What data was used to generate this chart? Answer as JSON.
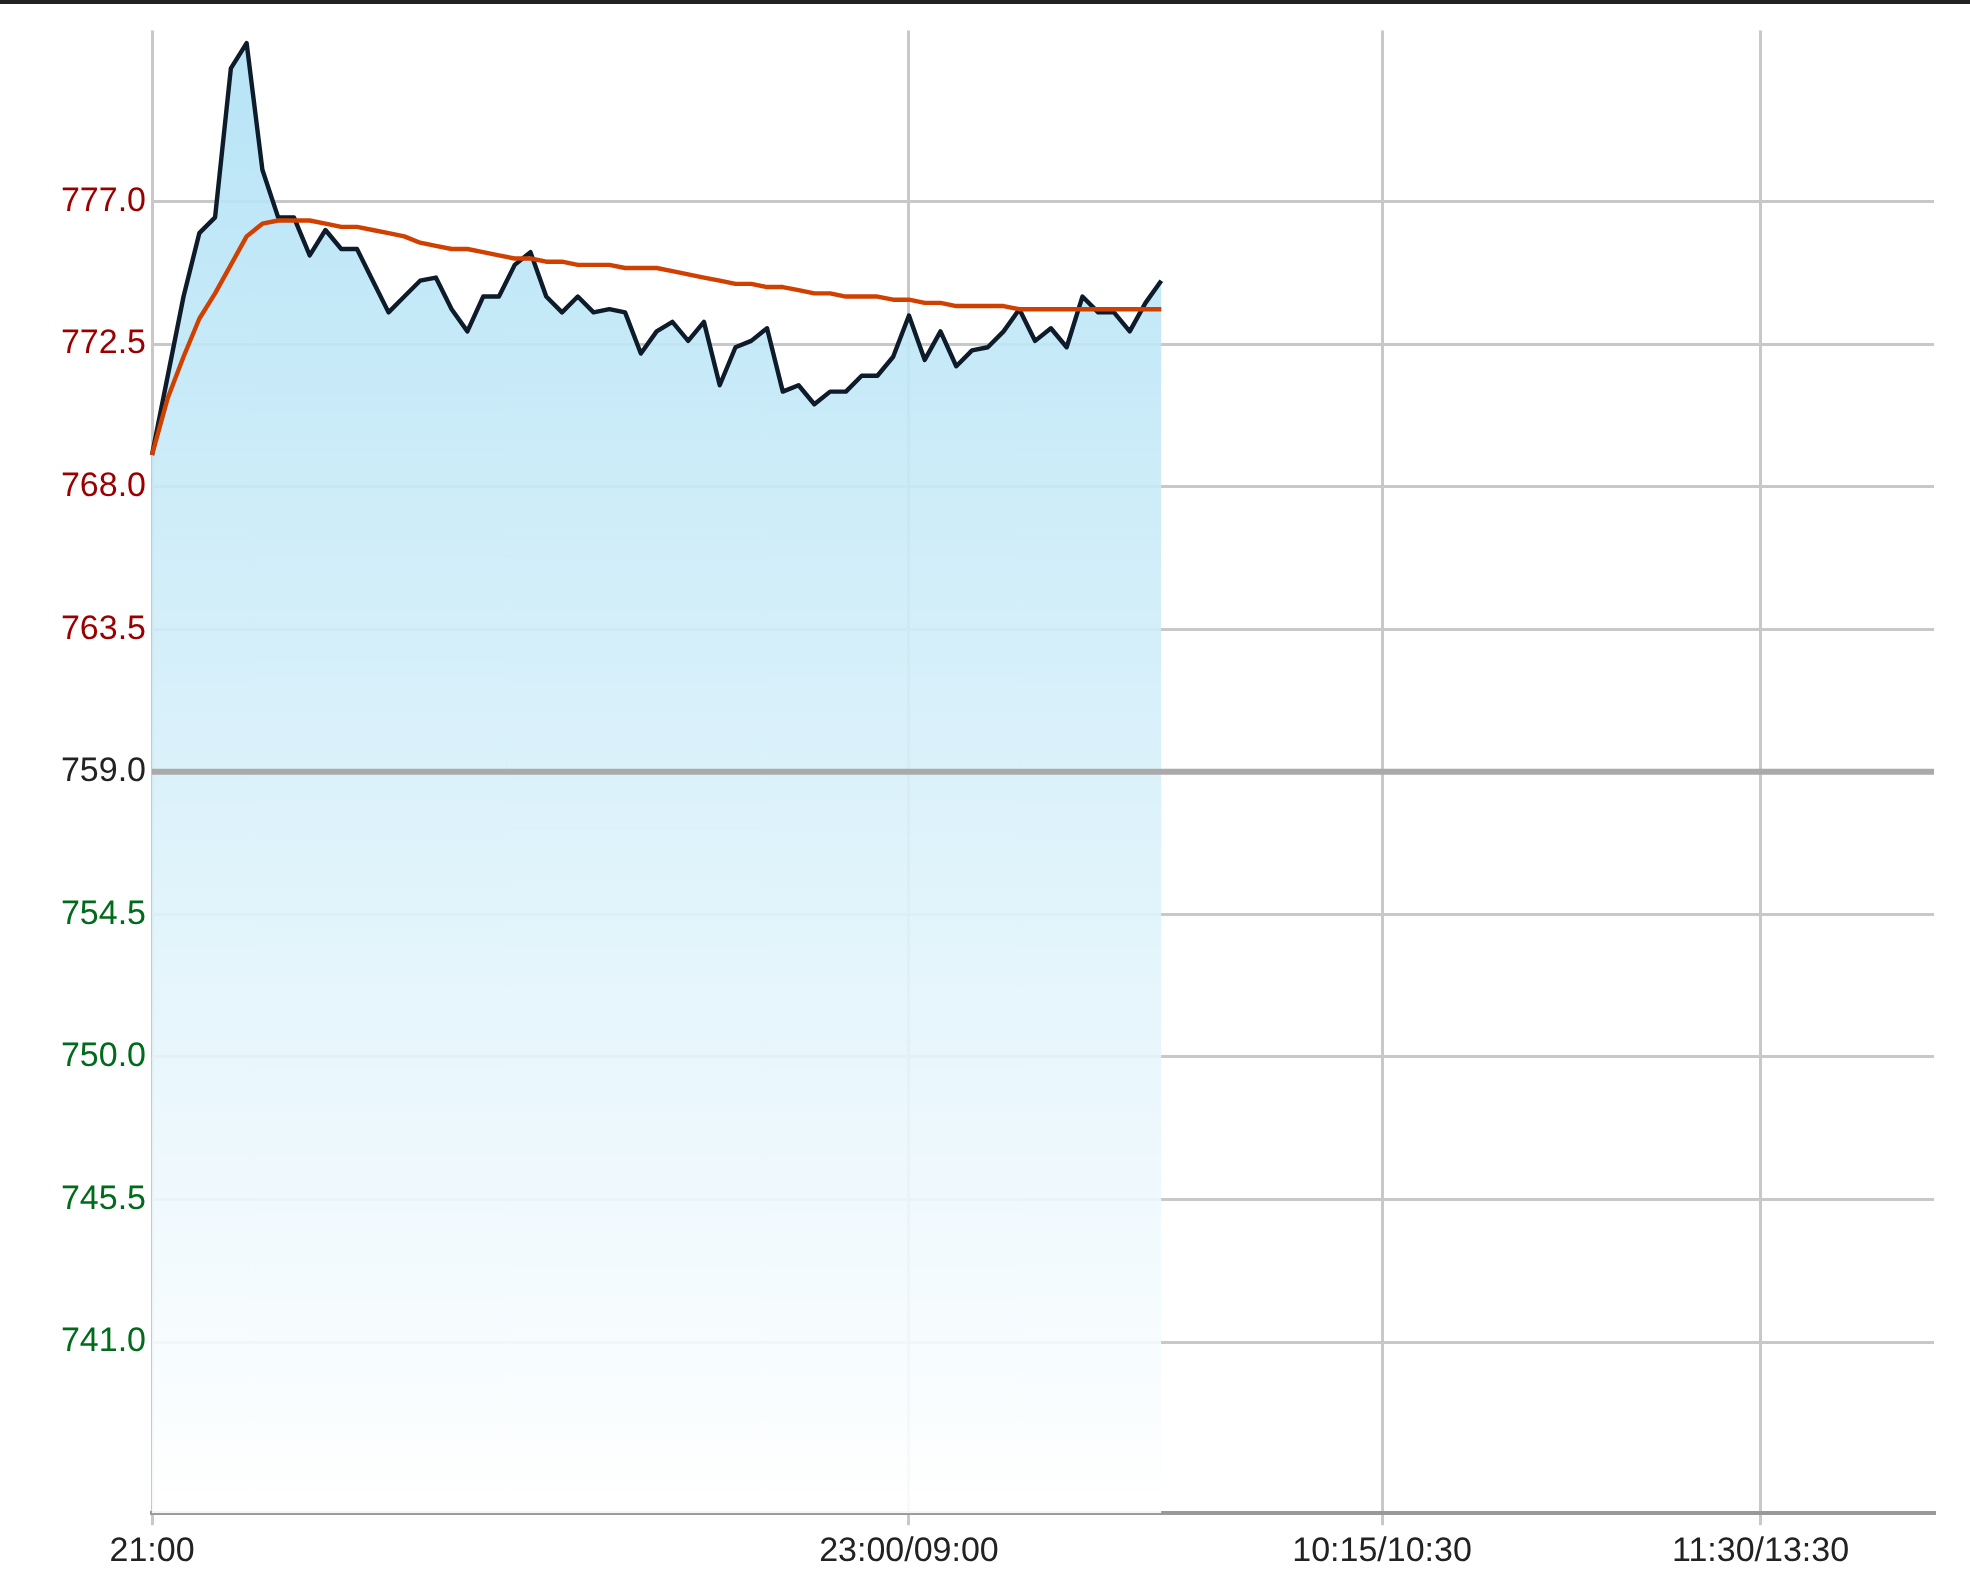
{
  "chart_data": {
    "type": "area",
    "categories": [
      "21:00",
      null,
      null,
      null,
      null,
      null,
      null,
      null,
      null,
      null,
      null,
      null,
      null,
      null,
      null,
      null,
      null,
      null,
      null,
      null,
      null,
      null,
      null,
      null,
      null,
      null,
      null,
      null,
      null,
      null,
      null,
      null,
      null,
      null,
      null,
      null,
      null,
      null,
      null,
      null,
      null,
      null,
      null,
      null,
      null,
      null,
      null,
      null,
      "23:00/09:00",
      null,
      null,
      null,
      null,
      null,
      null,
      null,
      null,
      null,
      null,
      null,
      null,
      null,
      null,
      null,
      null,
      null,
      null,
      null,
      null,
      null,
      null,
      null,
      null,
      null,
      null,
      null,
      null,
      null,
      "10:15/10:30",
      null,
      null,
      null,
      null,
      null,
      null,
      null,
      null,
      null,
      null,
      null,
      null,
      null,
      null,
      null,
      null,
      null,
      null,
      null,
      null,
      null,
      null,
      null,
      "11:30/13:30",
      null,
      null,
      null,
      null,
      null,
      null,
      null,
      null,
      null,
      null,
      null
    ],
    "ylim": [
      735.6,
      782.4
    ],
    "yticks": [
      {
        "value": 741,
        "label": "741.0"
      },
      {
        "value": 745.5,
        "label": "745.5"
      },
      {
        "value": 750,
        "label": "750.0"
      },
      {
        "value": 754.5,
        "label": "754.5"
      },
      {
        "value": 759,
        "label": "759.0"
      },
      {
        "value": 763.5,
        "label": "763.5"
      },
      {
        "value": 768,
        "label": "768.0"
      },
      {
        "value": 772.5,
        "label": "772.5"
      },
      {
        "value": 777,
        "label": "777.0"
      }
    ],
    "grid": true,
    "ref_lines": [
      {
        "axis": "y",
        "value": 759,
        "color": "#aaaaaa"
      }
    ],
    "series": [
      {
        "color": "#0d1b2a",
        "values": [
          769.0,
          771.5,
          774.0,
          776.0,
          776.5,
          781.2,
          782.0,
          778.0,
          776.5,
          776.5,
          775.3,
          776.1,
          775.5,
          775.5,
          774.5,
          773.5,
          774.0,
          774.5,
          774.6,
          773.6,
          772.9,
          774.0,
          774.0,
          775.0,
          775.4,
          774.0,
          773.5,
          774.0,
          773.5,
          773.6,
          773.5,
          772.2,
          772.9,
          773.2,
          772.6,
          773.2,
          771.2,
          772.4,
          772.6,
          773.0,
          771.0,
          771.2,
          770.6,
          771.0,
          771.0,
          771.5,
          771.5,
          772.1,
          773.4,
          772.0,
          772.9,
          771.8,
          772.3,
          772.4,
          772.9,
          773.6,
          772.6,
          773.0,
          772.4,
          774.0,
          773.5,
          773.5,
          772.9,
          773.8,
          774.5,
          null,
          null,
          null,
          null,
          null,
          null,
          null,
          null,
          null,
          null,
          null,
          null,
          null,
          null,
          null,
          null,
          null,
          null,
          null,
          null,
          null,
          null,
          null,
          null,
          null,
          null,
          null,
          null,
          null,
          null,
          null,
          null,
          null,
          null,
          null,
          null,
          null,
          null,
          null,
          null,
          null,
          null,
          null,
          null,
          null,
          null,
          null,
          null,
          null
        ]
      },
      {
        "type": "line",
        "color": "#d04000",
        "values": [
          769.0,
          770.8,
          772.1,
          773.3,
          774.1,
          775.0,
          775.9,
          776.3,
          776.4,
          776.4,
          776.4,
          776.3,
          776.2,
          776.2,
          776.1,
          776.0,
          775.9,
          775.7,
          775.6,
          775.5,
          775.5,
          775.4,
          775.3,
          775.2,
          775.2,
          775.1,
          775.1,
          775.0,
          775.0,
          775.0,
          774.9,
          774.9,
          774.9,
          774.8,
          774.7,
          774.6,
          774.5,
          774.4,
          774.4,
          774.3,
          774.3,
          774.2,
          774.1,
          774.1,
          774.0,
          774.0,
          774.0,
          773.9,
          773.9,
          773.8,
          773.8,
          773.7,
          773.7,
          773.7,
          773.7,
          773.6,
          773.6,
          773.6,
          773.6,
          773.6,
          773.6,
          773.6,
          773.6,
          773.6,
          773.6,
          null,
          null,
          null,
          null,
          null,
          null,
          null,
          null,
          null,
          null,
          null,
          null,
          null,
          null,
          null,
          null,
          null,
          null,
          null,
          null,
          null,
          null,
          null,
          null,
          null,
          null,
          null,
          null,
          null,
          null,
          null,
          null,
          null,
          null,
          null,
          null,
          null,
          null,
          null,
          null,
          null,
          null,
          null,
          null,
          null,
          null,
          null,
          null,
          null
        ]
      }
    ]
  }
}
